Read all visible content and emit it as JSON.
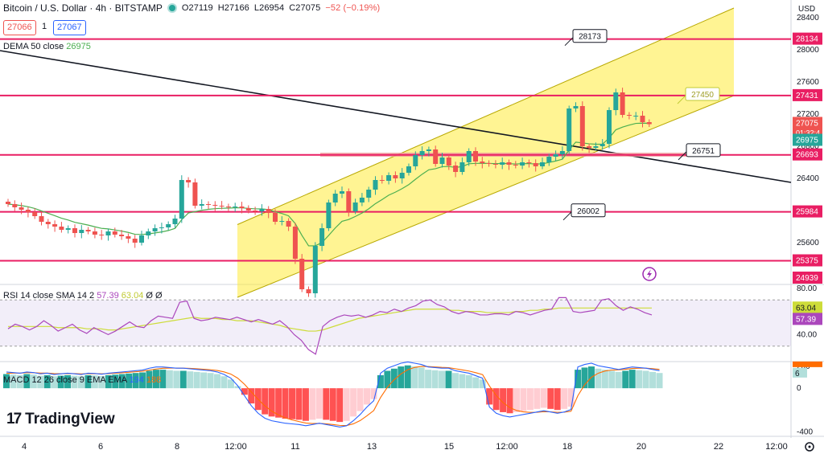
{
  "header": {
    "symbol": "Bitcoin / U.S. Dollar · 4h · BITSTAMP",
    "ohlc_o": "O27119",
    "ohlc_h": "H27166",
    "ohlc_l": "L26954",
    "ohlc_c": "C27075",
    "change": "−52 (−0.19%)"
  },
  "trade": {
    "bid": "27066",
    "qty": "1",
    "ask": "27067"
  },
  "indicators": {
    "dema_label": "DEMA 50 close",
    "dema_value": "26975",
    "rsi_label": "RSI 14 close SMA 14 2",
    "rsi_value": "57.39",
    "rsi_sma_value": "63.04",
    "rsi_tail": "Ø Ø",
    "macd_label": "MACD 12 26 close 9 EMA EMA",
    "macd_value": "194",
    "signal_value": "188"
  },
  "brand": {
    "mark": "17",
    "word": "TradingView"
  },
  "colors": {
    "up": "#26a69a",
    "down": "#ef5350",
    "level": "#e91e63",
    "channel_fill": "#ffeb3b",
    "dema": "#4caf50",
    "rsi": "#ab47bc",
    "rsi_sma": "#cddc39",
    "macd": "#2962ff",
    "signal": "#ff6d00"
  },
  "chart_data": [
    {
      "type": "candlestick",
      "title": "Bitcoin / U.S. Dollar · 4h · BITSTAMP",
      "currency": "USD",
      "x_ticks": [
        "4",
        "6",
        "8",
        "12:00",
        "11",
        "13",
        "15",
        "12:00",
        "18",
        "20",
        "22",
        "12:00"
      ],
      "y_ticks": [
        25200,
        25600,
        26000,
        26400,
        26800,
        27200,
        27600,
        28000,
        28400
      ],
      "ylim": [
        25100,
        28520
      ],
      "closes": [
        26080,
        26040,
        26010,
        25980,
        25930,
        25860,
        25830,
        25800,
        25760,
        25780,
        25720,
        25760,
        25740,
        25700,
        25690,
        25740,
        25700,
        25680,
        25650,
        25600,
        25690,
        25740,
        25780,
        25790,
        25830,
        25900,
        26380,
        26350,
        26060,
        26080,
        26070,
        26060,
        26050,
        26040,
        26050,
        26030,
        26000,
        25990,
        26020,
        25970,
        25860,
        25870,
        25800,
        25400,
        25020,
        24970,
        25560,
        25780,
        26100,
        26210,
        26240,
        25990,
        26100,
        26160,
        26260,
        26380,
        26370,
        26440,
        26400,
        26470,
        26550,
        26690,
        26740,
        26760,
        26580,
        26660,
        26560,
        26480,
        26600,
        26740,
        26610,
        26590,
        26580,
        26570,
        26600,
        26570,
        26560,
        26600,
        26590,
        26550,
        26600,
        26670,
        26700,
        26740,
        27270,
        27300,
        26800,
        26780,
        26800,
        26830,
        27250,
        27470,
        27190,
        27180,
        27180,
        27100,
        27075
      ],
      "price_levels": [
        {
          "label": "28134",
          "value": 28134
        },
        {
          "label": "27431",
          "value": 27431
        },
        {
          "label": "26693",
          "value": 26693
        },
        {
          "label": "25984",
          "value": 25984
        },
        {
          "label": "25375",
          "value": 25375
        },
        {
          "label": "24939",
          "value": 24939
        }
      ],
      "annotations": [
        {
          "text": "28173",
          "value": 28173
        },
        {
          "text": "27450",
          "value": 27450
        },
        {
          "text": "26751",
          "value": 26751
        },
        {
          "text": "26002",
          "value": 26002
        }
      ],
      "axis_tags": [
        {
          "text": "27075",
          "sub": "01:32:4",
          "value": 27075,
          "role": "last"
        },
        {
          "text": "26975",
          "value": 26975,
          "role": "dema"
        }
      ],
      "series": [
        {
          "name": "DEMA 50 close",
          "last": 26975
        }
      ]
    },
    {
      "type": "line",
      "title": "RSI 14 close SMA 14 2",
      "y_ticks": [
        40.0,
        60.0,
        80.0
      ],
      "ylim": [
        18,
        82
      ],
      "bands": [
        30,
        70
      ],
      "series": [
        {
          "name": "RSI",
          "values": [
            45,
            49,
            47,
            44,
            47,
            52,
            48,
            43,
            46,
            49,
            44,
            41,
            46,
            43,
            40,
            43,
            47,
            51,
            47,
            46,
            52,
            56,
            55,
            54,
            68,
            69,
            54,
            52,
            53,
            55,
            54,
            53,
            55,
            53,
            51,
            53,
            51,
            49,
            52,
            47,
            40,
            35,
            27,
            23,
            47,
            52,
            55,
            57,
            56,
            57,
            55,
            57,
            60,
            59,
            62,
            60,
            63,
            65,
            69,
            70,
            66,
            64,
            60,
            58,
            60,
            59,
            57,
            57,
            58,
            58,
            57,
            60,
            59,
            57,
            59,
            61,
            62,
            72,
            72,
            60,
            59,
            60,
            61,
            70,
            71,
            65,
            61,
            64,
            62,
            59,
            57
          ],
          "last": 57.39
        },
        {
          "name": "SMA",
          "values": [
            47,
            47,
            47,
            47,
            47,
            47,
            47,
            46,
            46,
            46,
            46,
            45,
            45,
            45,
            44,
            44,
            45,
            46,
            47,
            48,
            49,
            50,
            51,
            52,
            53,
            54,
            55,
            54,
            54,
            54,
            53,
            53,
            52,
            52,
            52,
            51,
            50,
            49,
            48,
            46,
            45,
            44,
            43,
            43,
            44,
            46,
            48,
            50,
            52,
            54,
            55,
            56,
            57,
            58,
            59,
            60,
            61,
            62,
            62,
            62,
            62,
            62,
            61,
            61,
            60,
            60,
            60,
            59,
            59,
            59,
            59,
            60,
            60,
            61,
            61,
            62,
            62,
            63,
            63,
            63,
            63,
            63,
            63,
            63,
            63,
            63,
            63,
            63,
            63,
            63,
            63
          ],
          "last": 63.04
        }
      ]
    },
    {
      "type": "bar",
      "title": "MACD 12 26 close 9 EMA EMA",
      "y_ticks": [
        -400,
        0,
        200
      ],
      "ylim": [
        -420,
        230
      ],
      "histogram": [
        130,
        125,
        120,
        130,
        125,
        115,
        120,
        110,
        115,
        120,
        115,
        110,
        120,
        118,
        112,
        120,
        125,
        130,
        135,
        140,
        145,
        160,
        170,
        170,
        165,
        160,
        160,
        155,
        150,
        145,
        140,
        130,
        110,
        80,
        20,
        -60,
        -140,
        -200,
        -240,
        -260,
        -270,
        -280,
        -285,
        -290,
        -300,
        -290,
        -280,
        -290,
        -300,
        -310,
        -300,
        -260,
        -210,
        -150,
        -100,
        120,
        160,
        180,
        200,
        210,
        200,
        190,
        170,
        165,
        160,
        160,
        140,
        130,
        120,
        100,
        80,
        -150,
        -200,
        -220,
        -230,
        -220,
        -210,
        -200,
        -190,
        -180,
        -190,
        -200,
        -190,
        -170,
        170,
        190,
        200,
        180,
        170,
        160,
        150,
        160,
        170,
        165,
        160,
        150,
        140
      ],
      "series": [
        {
          "name": "MACD",
          "last": 194
        },
        {
          "name": "Signal",
          "last": 188
        }
      ]
    }
  ]
}
